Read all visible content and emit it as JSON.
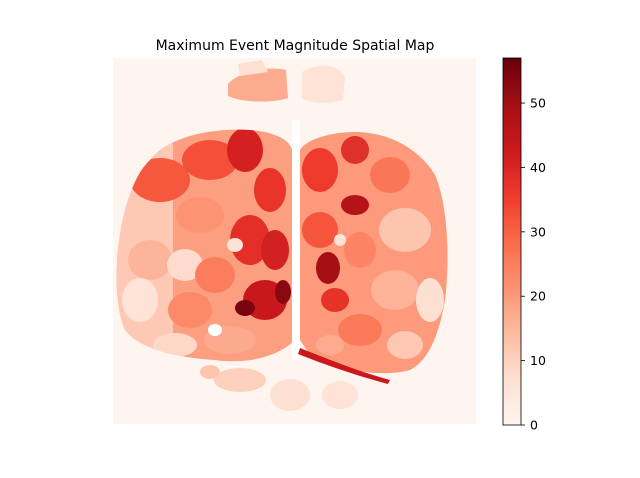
{
  "chart_data": {
    "type": "heatmap",
    "title": "Maximum Event Magnitude Spatial Map",
    "colormap": "Reds",
    "colors": {
      "low": "#fff5f0",
      "mid": "#fb6a4a",
      "high": "#67000d"
    },
    "colorbar": {
      "min": 0,
      "max": 57,
      "ticks": [
        0,
        10,
        20,
        30,
        40,
        50
      ],
      "tick_labels": [
        "0",
        "10",
        "20",
        "30",
        "40",
        "50"
      ]
    },
    "axes_visible": false,
    "description": "Cortical map with two hemispheres split by a vertical midline gap; patchy regions with values mostly 10-35, hot spots up to ~57 near the medial left hemisphere."
  }
}
